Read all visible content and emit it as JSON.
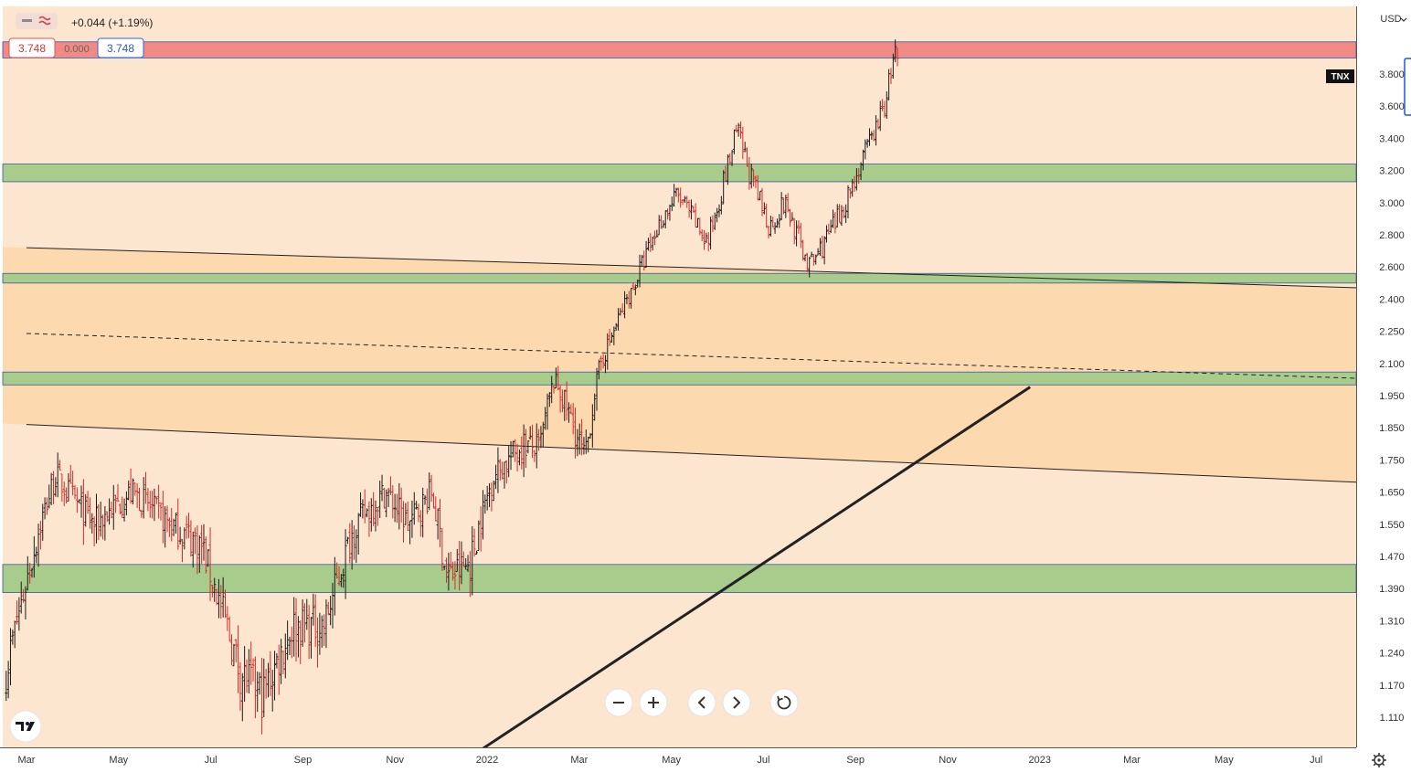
{
  "header": {
    "change_text": "+0.044 (+1.19%)",
    "price_bid": "3.748",
    "spread": "0.000",
    "price_ask": "3.748"
  },
  "price_scale": {
    "currency_label": "USD",
    "ticker": "TNX"
  },
  "nav_buttons": [
    "zoom-out",
    "zoom-in",
    "scroll-left",
    "scroll-right",
    "reset"
  ],
  "colors": {
    "background": "#fde6cf",
    "zone_green": "#a8cc8c",
    "zone_red": "#f08a82",
    "zone_orange": "#fdd9b0",
    "bar_up": "#1a1a1a",
    "bar_down": "#d42b2b"
  },
  "chart_data": {
    "type": "ohlc",
    "symbol": "TNX",
    "x_labels": [
      "Mar",
      "May",
      "Jul",
      "Sep",
      "Nov",
      "2022",
      "Mar",
      "May",
      "Jul",
      "Sep",
      "Nov",
      "2023",
      "Mar",
      "May",
      "Jul"
    ],
    "y_ticks": [
      1.11,
      1.17,
      1.24,
      1.31,
      1.39,
      1.47,
      1.55,
      1.65,
      1.75,
      1.85,
      1.95,
      2.1,
      2.25,
      2.4,
      2.6,
      2.8,
      3.0,
      3.2,
      3.4,
      3.6,
      3.8
    ],
    "x_range_months": [
      "2021-03",
      "2023-07"
    ],
    "price_path": [
      [
        "2021-02-18",
        1.2
      ],
      [
        "2021-03-10",
        1.55
      ],
      [
        "2021-03-20",
        1.7
      ],
      [
        "2021-04-15",
        1.55
      ],
      [
        "2021-05-10",
        1.65
      ],
      [
        "2021-06-05",
        1.55
      ],
      [
        "2021-06-25",
        1.5
      ],
      [
        "2021-07-20",
        1.2
      ],
      [
        "2021-08-05",
        1.15
      ],
      [
        "2021-08-25",
        1.3
      ],
      [
        "2021-09-15",
        1.3
      ],
      [
        "2021-10-05",
        1.55
      ],
      [
        "2021-10-25",
        1.65
      ],
      [
        "2021-11-10",
        1.55
      ],
      [
        "2021-11-25",
        1.65
      ],
      [
        "2021-12-05",
        1.42
      ],
      [
        "2021-12-20",
        1.45
      ],
      [
        "2022-01-05",
        1.7
      ],
      [
        "2022-01-25",
        1.8
      ],
      [
        "2022-02-05",
        1.78
      ],
      [
        "2022-02-15",
        2.02
      ],
      [
        "2022-03-05",
        1.75
      ],
      [
        "2022-03-15",
        2.1
      ],
      [
        "2022-04-05",
        2.45
      ],
      [
        "2022-04-25",
        2.9
      ],
      [
        "2022-05-05",
        3.05
      ],
      [
        "2022-05-25",
        2.75
      ],
      [
        "2022-06-14",
        3.45
      ],
      [
        "2022-06-25",
        3.1
      ],
      [
        "2022-07-05",
        2.85
      ],
      [
        "2022-07-15",
        3.0
      ],
      [
        "2022-08-01",
        2.6
      ],
      [
        "2022-08-20",
        2.9
      ],
      [
        "2022-09-05",
        3.25
      ],
      [
        "2022-09-20",
        3.6
      ],
      [
        "2022-09-27",
        3.95
      ],
      [
        "2022-09-30",
        3.75
      ]
    ],
    "zones": [
      {
        "low": 3.9,
        "high": 4.0,
        "color": "red"
      },
      {
        "low": 3.13,
        "high": 3.24,
        "color": "green"
      },
      {
        "low": 2.5,
        "high": 2.56,
        "color": "green"
      },
      {
        "low": 2.0,
        "high": 2.06,
        "color": "green"
      },
      {
        "low": 1.38,
        "high": 1.45,
        "color": "green"
      }
    ],
    "trendlines": [
      {
        "style": "solid-thin",
        "from": [
          "2021-03-01",
          2.72
        ],
        "to": [
          "2023-07-31",
          2.47
        ]
      },
      {
        "style": "dashed",
        "from": [
          "2021-03-01",
          2.24
        ],
        "to": [
          "2023-07-31",
          2.03
        ]
      },
      {
        "style": "solid-thin",
        "from": [
          "2021-03-01",
          1.86
        ],
        "to": [
          "2023-07-31",
          1.68
        ]
      },
      {
        "style": "solid-thick",
        "from": [
          "2021-12-01",
          1.0
        ],
        "to": [
          "2022-12-25",
          1.99
        ]
      }
    ],
    "grid": false,
    "legend": "none"
  }
}
